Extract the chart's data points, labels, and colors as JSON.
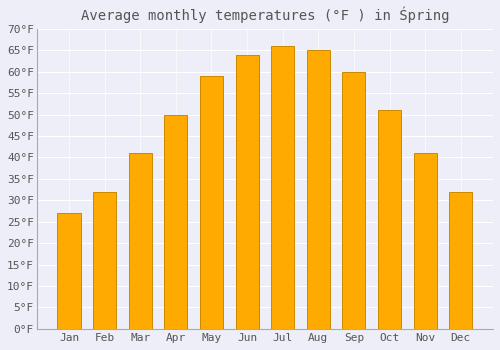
{
  "title": "Average monthly temperatures (°F ) in Śpring",
  "months": [
    "Jan",
    "Feb",
    "Mar",
    "Apr",
    "May",
    "Jun",
    "Jul",
    "Aug",
    "Sep",
    "Oct",
    "Nov",
    "Dec"
  ],
  "values": [
    27,
    32,
    41,
    50,
    59,
    64,
    66,
    65,
    60,
    51,
    41,
    32
  ],
  "bar_color_main": "#FFAA00",
  "bar_color_light": "#FFD060",
  "bar_edge_color": "#CC8800",
  "background_color": "#eeeef8",
  "plot_bg_color": "#eeeef8",
  "grid_color": "#ffffff",
  "text_color": "#555555",
  "ylim": [
    0,
    70
  ],
  "ytick_step": 5,
  "title_fontsize": 10,
  "tick_fontsize": 8,
  "figsize": [
    5.0,
    3.5
  ],
  "dpi": 100
}
